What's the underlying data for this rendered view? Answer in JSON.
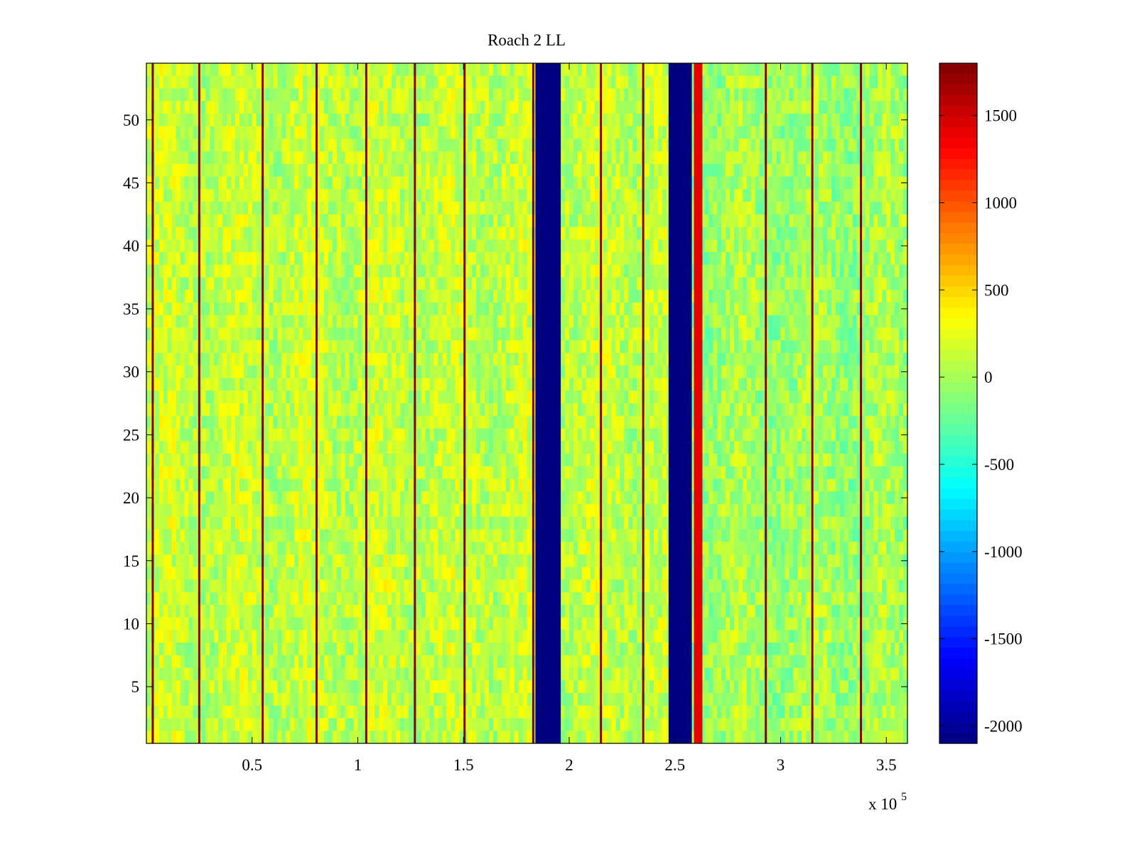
{
  "chart_data": {
    "type": "heatmap",
    "title": "Roach 2 LL",
    "xlabel": "",
    "ylabel": "",
    "x_range": [
      0,
      360000
    ],
    "y_range": [
      0.5,
      54.5
    ],
    "x_ticks": [
      50000,
      100000,
      150000,
      200000,
      250000,
      300000,
      350000
    ],
    "x_tick_labels": [
      "0.5",
      "1",
      "1.5",
      "2",
      "2.5",
      "3",
      "3.5"
    ],
    "x_exponent_label": "x 10",
    "x_exponent_power": "5",
    "y_ticks": [
      5,
      10,
      15,
      20,
      25,
      30,
      35,
      40,
      45,
      50
    ],
    "y_tick_labels": [
      "5",
      "10",
      "15",
      "20",
      "25",
      "30",
      "35",
      "40",
      "45",
      "50"
    ],
    "rows": 54,
    "colormap": "jet",
    "color_range": [
      -2100,
      1800
    ],
    "colorbar_ticks": [
      1500,
      1000,
      500,
      0,
      -500,
      -1000,
      -1500,
      -2000
    ],
    "colorbar_tick_labels": [
      "1500",
      "1000",
      "500",
      "0",
      "-500",
      "-1000",
      "-1500",
      "-2000"
    ],
    "background_value_range": [
      -500,
      500
    ],
    "red_stripes_x": [
      3000,
      25000,
      55000,
      80500,
      104000,
      127000,
      150500,
      183000,
      215000,
      235000,
      293000,
      315000,
      338000
    ],
    "saturated_low_bands": [
      {
        "x_range": [
          184000,
          196000
        ],
        "value": -2100
      },
      {
        "x_range": [
          247000,
          258000
        ],
        "value": -2100
      }
    ],
    "hot_band": {
      "x_range": [
        259000,
        263000
      ],
      "value": 1400
    },
    "grid": false,
    "colorbar_position": "right"
  }
}
